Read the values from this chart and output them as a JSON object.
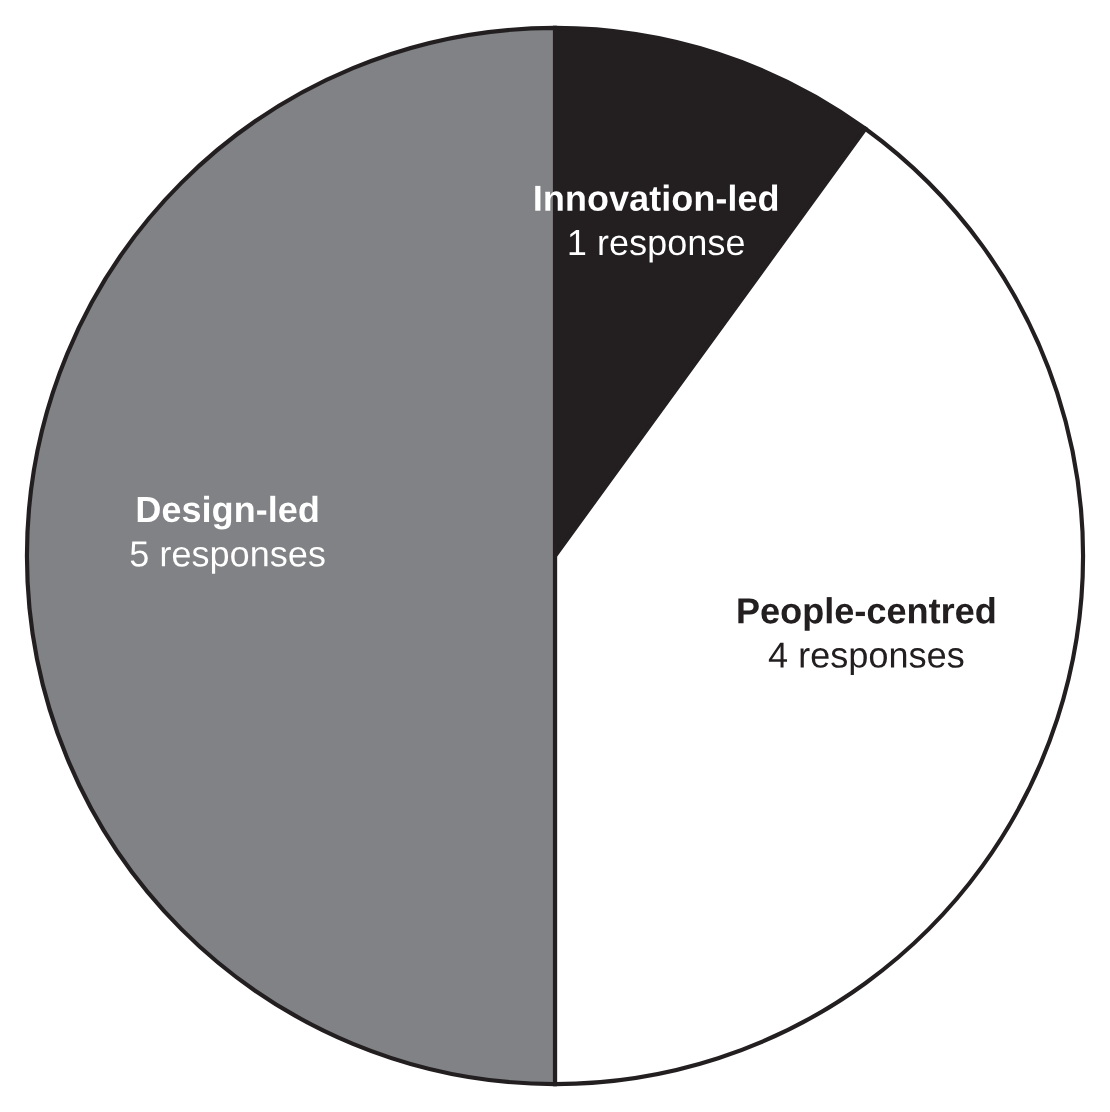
{
  "chart_data": {
    "type": "pie",
    "categories": [
      "Innovation-led",
      "People-centred",
      "Design-led"
    ],
    "values": [
      1,
      4,
      5
    ],
    "colors": [
      "#231f20",
      "#ffffff",
      "#808285"
    ],
    "value_labels": [
      "1 response",
      "4 responses",
      "5 responses"
    ],
    "legend": false
  }
}
